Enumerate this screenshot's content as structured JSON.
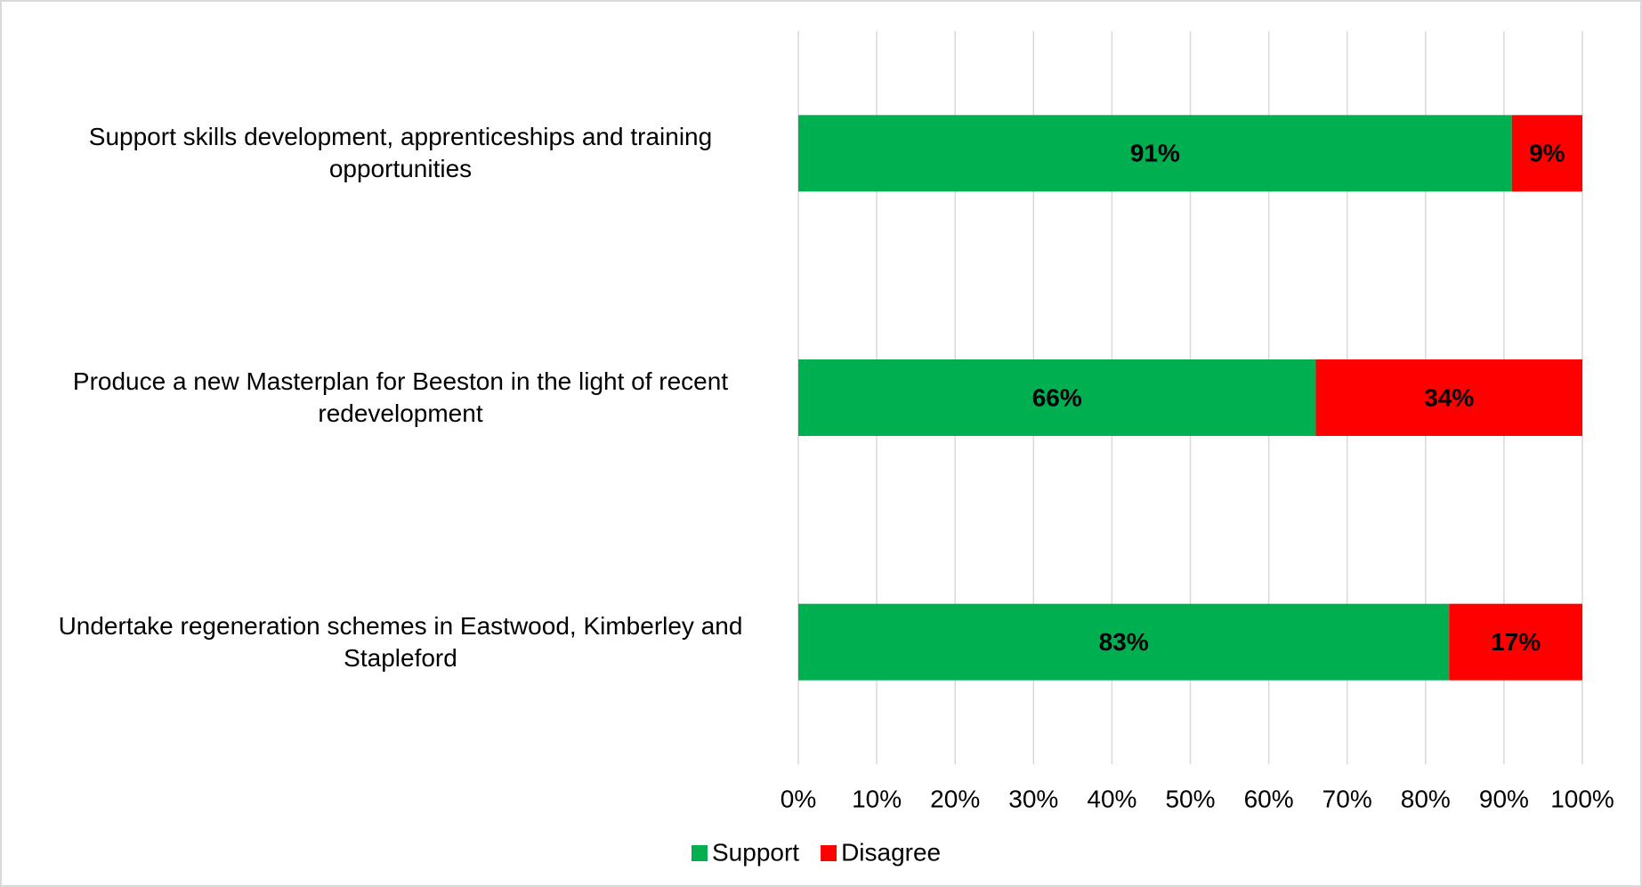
{
  "chart_data": {
    "type": "stacked_bar_horizontal",
    "categories": [
      "Support skills development, apprenticeships and training opportunities",
      "Produce a new Masterplan for Beeston in the light of recent redevelopment",
      "Undertake regeneration schemes in Eastwood, Kimberley and Stapleford"
    ],
    "series": [
      {
        "name": "Support",
        "color": "#00b050",
        "values": [
          91,
          66,
          83
        ],
        "value_labels": [
          "91%",
          "66%",
          "83%"
        ]
      },
      {
        "name": "Disagree",
        "color": "#ff0000",
        "values": [
          9,
          34,
          17
        ],
        "value_labels": [
          "9%",
          "34%",
          "17%"
        ]
      }
    ],
    "xlim": [
      0,
      100
    ],
    "xticks": [
      {
        "value": 0,
        "label": "0%"
      },
      {
        "value": 10,
        "label": "10%"
      },
      {
        "value": 20,
        "label": "20%"
      },
      {
        "value": 30,
        "label": "30%"
      },
      {
        "value": 40,
        "label": "40%"
      },
      {
        "value": 50,
        "label": "50%"
      },
      {
        "value": 60,
        "label": "60%"
      },
      {
        "value": 70,
        "label": "70%"
      },
      {
        "value": 80,
        "label": "80%"
      },
      {
        "value": 90,
        "label": "90%"
      },
      {
        "value": 100,
        "label": "100%"
      }
    ],
    "grid": true,
    "legend": "bottom"
  }
}
